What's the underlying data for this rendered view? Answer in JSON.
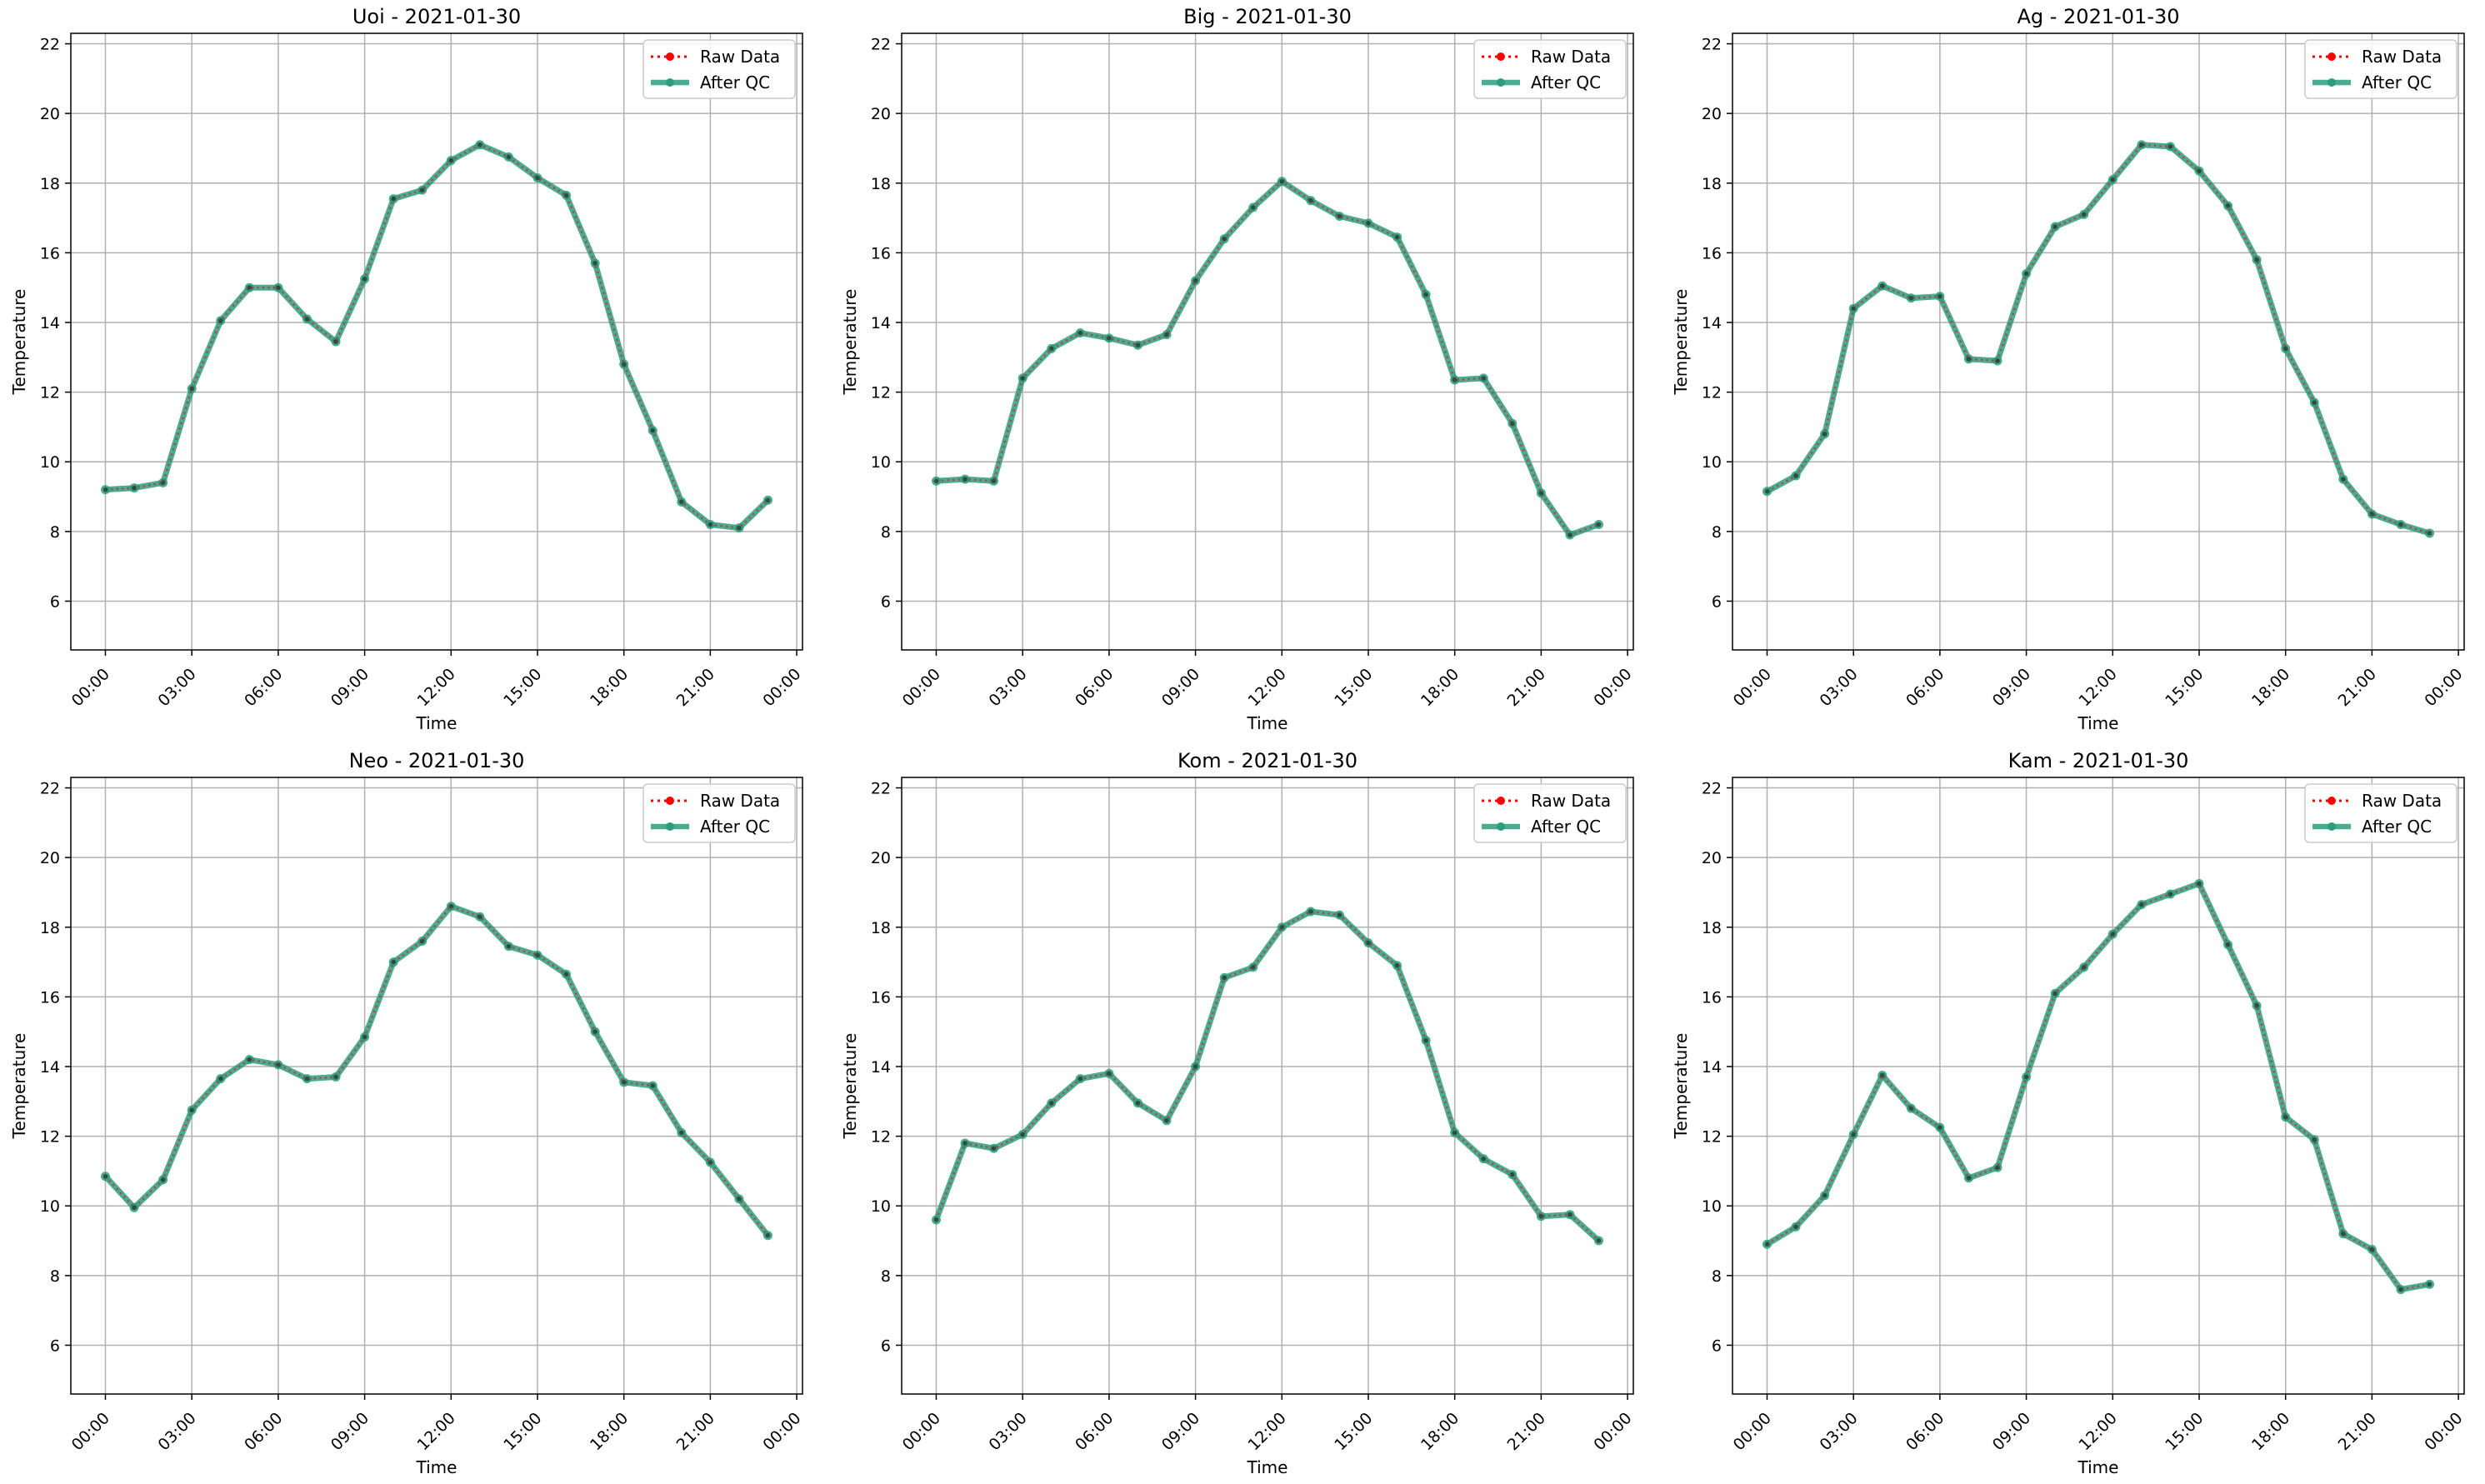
{
  "colors": {
    "raw": "#ff0000",
    "qc": "#2a9d7c",
    "grid": "#b0b0b0",
    "axes": "#000000",
    "background": "#ffffff"
  },
  "chart_data": [
    {
      "type": "line",
      "title": "Uoi - 2021-01-30",
      "xlabel": "Time",
      "ylabel": "Temperature",
      "x": [
        "00:00",
        "01:00",
        "02:00",
        "03:00",
        "04:00",
        "05:00",
        "06:00",
        "07:00",
        "08:00",
        "09:00",
        "10:00",
        "11:00",
        "12:00",
        "13:00",
        "14:00",
        "15:00",
        "16:00",
        "17:00",
        "18:00",
        "19:00",
        "20:00",
        "21:00",
        "22:00",
        "23:00"
      ],
      "xticks": [
        "00:00",
        "03:00",
        "06:00",
        "09:00",
        "12:00",
        "15:00",
        "18:00",
        "21:00",
        "00:00"
      ],
      "xlim_hours": [
        -1.2,
        24.2
      ],
      "yticks": [
        6,
        8,
        10,
        12,
        14,
        16,
        18,
        20,
        22
      ],
      "ylim": [
        4.6,
        22.3
      ],
      "grid": true,
      "legend_position": "top-right",
      "series": [
        {
          "name": "Raw Data",
          "style": "dotted",
          "marker": "circle",
          "values": [
            9.2,
            9.25,
            9.4,
            12.1,
            14.05,
            15.0,
            15.0,
            14.1,
            13.45,
            15.25,
            17.55,
            17.8,
            18.65,
            19.1,
            18.75,
            18.15,
            17.65,
            15.7,
            12.8,
            10.9,
            8.85,
            8.2,
            8.1,
            8.9
          ]
        },
        {
          "name": "After QC",
          "style": "solid",
          "marker": "circle",
          "values": [
            9.2,
            9.25,
            9.4,
            12.1,
            14.05,
            15.0,
            15.0,
            14.1,
            13.45,
            15.25,
            17.55,
            17.8,
            18.65,
            19.1,
            18.75,
            18.15,
            17.65,
            15.7,
            12.8,
            10.9,
            8.85,
            8.2,
            8.1,
            8.9
          ]
        }
      ]
    },
    {
      "type": "line",
      "title": "Big - 2021-01-30",
      "xlabel": "Time",
      "ylabel": "Temperature",
      "x": [
        "00:00",
        "01:00",
        "02:00",
        "03:00",
        "04:00",
        "05:00",
        "06:00",
        "07:00",
        "08:00",
        "09:00",
        "10:00",
        "11:00",
        "12:00",
        "13:00",
        "14:00",
        "15:00",
        "16:00",
        "17:00",
        "18:00",
        "19:00",
        "20:00",
        "21:00",
        "22:00",
        "23:00"
      ],
      "xticks": [
        "00:00",
        "03:00",
        "06:00",
        "09:00",
        "12:00",
        "15:00",
        "18:00",
        "21:00",
        "00:00"
      ],
      "xlim_hours": [
        -1.2,
        24.2
      ],
      "yticks": [
        6,
        8,
        10,
        12,
        14,
        16,
        18,
        20,
        22
      ],
      "ylim": [
        4.6,
        22.3
      ],
      "grid": true,
      "legend_position": "top-right",
      "series": [
        {
          "name": "Raw Data",
          "style": "dotted",
          "marker": "circle",
          "values": [
            9.45,
            9.5,
            9.45,
            12.4,
            13.25,
            13.7,
            13.55,
            13.35,
            13.65,
            15.2,
            16.4,
            17.3,
            18.05,
            17.5,
            17.05,
            16.85,
            16.45,
            14.8,
            12.35,
            12.4,
            11.1,
            9.1,
            7.9,
            8.2
          ]
        },
        {
          "name": "After QC",
          "style": "solid",
          "marker": "circle",
          "values": [
            9.45,
            9.5,
            9.45,
            12.4,
            13.25,
            13.7,
            13.55,
            13.35,
            13.65,
            15.2,
            16.4,
            17.3,
            18.05,
            17.5,
            17.05,
            16.85,
            16.45,
            14.8,
            12.35,
            12.4,
            11.1,
            9.1,
            7.9,
            8.2
          ]
        }
      ]
    },
    {
      "type": "line",
      "title": "Ag - 2021-01-30",
      "xlabel": "Time",
      "ylabel": "Temperature",
      "x": [
        "00:00",
        "01:00",
        "02:00",
        "03:00",
        "04:00",
        "05:00",
        "06:00",
        "07:00",
        "08:00",
        "09:00",
        "10:00",
        "11:00",
        "12:00",
        "13:00",
        "14:00",
        "15:00",
        "16:00",
        "17:00",
        "18:00",
        "19:00",
        "20:00",
        "21:00",
        "22:00",
        "23:00"
      ],
      "xticks": [
        "00:00",
        "03:00",
        "06:00",
        "09:00",
        "12:00",
        "15:00",
        "18:00",
        "21:00",
        "00:00"
      ],
      "xlim_hours": [
        -1.2,
        24.2
      ],
      "yticks": [
        6,
        8,
        10,
        12,
        14,
        16,
        18,
        20,
        22
      ],
      "ylim": [
        4.6,
        22.3
      ],
      "grid": true,
      "legend_position": "top-right",
      "series": [
        {
          "name": "Raw Data",
          "style": "dotted",
          "marker": "circle",
          "values": [
            9.15,
            9.6,
            10.8,
            14.4,
            15.05,
            14.7,
            14.75,
            12.95,
            12.9,
            15.4,
            16.75,
            17.1,
            18.1,
            19.1,
            19.05,
            18.35,
            17.35,
            15.8,
            13.25,
            11.7,
            9.5,
            8.5,
            8.2,
            7.95
          ]
        },
        {
          "name": "After QC",
          "style": "solid",
          "marker": "circle",
          "values": [
            9.15,
            9.6,
            10.8,
            14.4,
            15.05,
            14.7,
            14.75,
            12.95,
            12.9,
            15.4,
            16.75,
            17.1,
            18.1,
            19.1,
            19.05,
            18.35,
            17.35,
            15.8,
            13.25,
            11.7,
            9.5,
            8.5,
            8.2,
            7.95
          ]
        }
      ]
    },
    {
      "type": "line",
      "title": "Neo - 2021-01-30",
      "xlabel": "Time",
      "ylabel": "Temperature",
      "x": [
        "00:00",
        "01:00",
        "02:00",
        "03:00",
        "04:00",
        "05:00",
        "06:00",
        "07:00",
        "08:00",
        "09:00",
        "10:00",
        "11:00",
        "12:00",
        "13:00",
        "14:00",
        "15:00",
        "16:00",
        "17:00",
        "18:00",
        "19:00",
        "20:00",
        "21:00",
        "22:00",
        "23:00"
      ],
      "xticks": [
        "00:00",
        "03:00",
        "06:00",
        "09:00",
        "12:00",
        "15:00",
        "18:00",
        "21:00",
        "00:00"
      ],
      "xlim_hours": [
        -1.2,
        24.2
      ],
      "yticks": [
        6,
        8,
        10,
        12,
        14,
        16,
        18,
        20,
        22
      ],
      "ylim": [
        4.6,
        22.3
      ],
      "grid": true,
      "legend_position": "top-right",
      "series": [
        {
          "name": "Raw Data",
          "style": "dotted",
          "marker": "circle",
          "values": [
            10.85,
            9.95,
            10.75,
            12.75,
            13.65,
            14.2,
            14.05,
            13.65,
            13.7,
            14.85,
            17.0,
            17.6,
            18.6,
            18.3,
            17.45,
            17.2,
            16.65,
            15.0,
            13.55,
            13.45,
            12.1,
            11.25,
            10.2,
            9.15
          ]
        },
        {
          "name": "After QC",
          "style": "solid",
          "marker": "circle",
          "values": [
            10.85,
            9.95,
            10.75,
            12.75,
            13.65,
            14.2,
            14.05,
            13.65,
            13.7,
            14.85,
            17.0,
            17.6,
            18.6,
            18.3,
            17.45,
            17.2,
            16.65,
            15.0,
            13.55,
            13.45,
            12.1,
            11.25,
            10.2,
            9.15
          ]
        }
      ]
    },
    {
      "type": "line",
      "title": "Kom - 2021-01-30",
      "xlabel": "Time",
      "ylabel": "Temperature",
      "x": [
        "00:00",
        "01:00",
        "02:00",
        "03:00",
        "04:00",
        "05:00",
        "06:00",
        "07:00",
        "08:00",
        "09:00",
        "10:00",
        "11:00",
        "12:00",
        "13:00",
        "14:00",
        "15:00",
        "16:00",
        "17:00",
        "18:00",
        "19:00",
        "20:00",
        "21:00",
        "22:00",
        "23:00"
      ],
      "xticks": [
        "00:00",
        "03:00",
        "06:00",
        "09:00",
        "12:00",
        "15:00",
        "18:00",
        "21:00",
        "00:00"
      ],
      "xlim_hours": [
        -1.2,
        24.2
      ],
      "yticks": [
        6,
        8,
        10,
        12,
        14,
        16,
        18,
        20,
        22
      ],
      "ylim": [
        4.6,
        22.3
      ],
      "grid": true,
      "legend_position": "top-right",
      "series": [
        {
          "name": "Raw Data",
          "style": "dotted",
          "marker": "circle",
          "values": [
            9.6,
            11.8,
            11.65,
            12.05,
            12.95,
            13.65,
            13.8,
            12.95,
            12.45,
            14.0,
            16.55,
            16.85,
            18.0,
            18.45,
            18.35,
            17.55,
            16.9,
            14.75,
            12.1,
            11.35,
            10.9,
            9.7,
            9.75,
            9.0
          ]
        },
        {
          "name": "After QC",
          "style": "solid",
          "marker": "circle",
          "values": [
            9.6,
            11.8,
            11.65,
            12.05,
            12.95,
            13.65,
            13.8,
            12.95,
            12.45,
            14.0,
            16.55,
            16.85,
            18.0,
            18.45,
            18.35,
            17.55,
            16.9,
            14.75,
            12.1,
            11.35,
            10.9,
            9.7,
            9.75,
            9.0
          ]
        }
      ]
    },
    {
      "type": "line",
      "title": "Kam - 2021-01-30",
      "xlabel": "Time",
      "ylabel": "Temperature",
      "x": [
        "00:00",
        "01:00",
        "02:00",
        "03:00",
        "04:00",
        "05:00",
        "06:00",
        "07:00",
        "08:00",
        "09:00",
        "10:00",
        "11:00",
        "12:00",
        "13:00",
        "14:00",
        "15:00",
        "16:00",
        "17:00",
        "18:00",
        "19:00",
        "20:00",
        "21:00",
        "22:00",
        "23:00"
      ],
      "xticks": [
        "00:00",
        "03:00",
        "06:00",
        "09:00",
        "12:00",
        "15:00",
        "18:00",
        "21:00",
        "00:00"
      ],
      "xlim_hours": [
        -1.2,
        24.2
      ],
      "yticks": [
        6,
        8,
        10,
        12,
        14,
        16,
        18,
        20,
        22
      ],
      "ylim": [
        4.6,
        22.3
      ],
      "grid": true,
      "legend_position": "top-right",
      "series": [
        {
          "name": "Raw Data",
          "style": "dotted",
          "marker": "circle",
          "values": [
            8.9,
            9.4,
            10.3,
            12.05,
            13.75,
            12.8,
            12.25,
            10.8,
            11.1,
            13.7,
            16.1,
            16.85,
            17.8,
            18.65,
            18.95,
            19.25,
            17.5,
            15.75,
            12.55,
            11.9,
            9.2,
            8.75,
            7.6,
            7.75
          ]
        },
        {
          "name": "After QC",
          "style": "solid",
          "marker": "circle",
          "values": [
            8.9,
            9.4,
            10.3,
            12.05,
            13.75,
            12.8,
            12.25,
            10.8,
            11.1,
            13.7,
            16.1,
            16.85,
            17.8,
            18.65,
            18.95,
            19.25,
            17.5,
            15.75,
            12.55,
            11.9,
            9.2,
            8.75,
            7.6,
            7.75
          ]
        }
      ]
    }
  ]
}
